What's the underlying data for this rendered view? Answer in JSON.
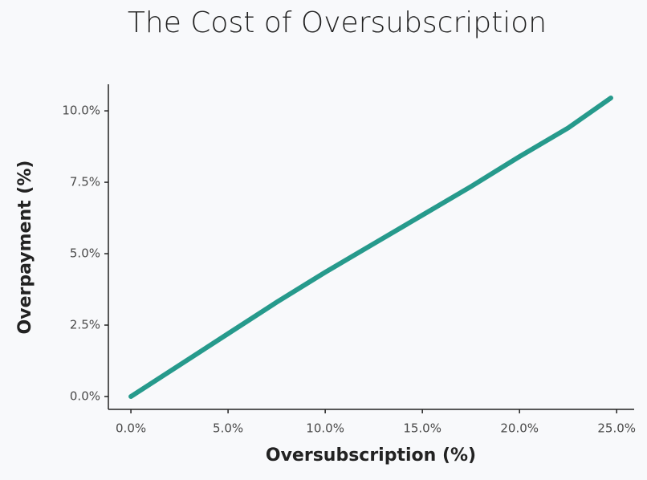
{
  "chart_data": {
    "type": "line",
    "title": "The Cost of Oversubscription",
    "x_label": "Oversubscription (%)",
    "y_label": "Overpayment (%)",
    "x": [
      0,
      2.5,
      5,
      7.5,
      10,
      12.5,
      15,
      17.5,
      20,
      22.5,
      24.7
    ],
    "series": [
      {
        "name": "Overpayment",
        "color": "#269a8c",
        "values": [
          0,
          1.1,
          2.2,
          3.3,
          4.35,
          5.35,
          6.35,
          7.35,
          8.4,
          9.4,
          10.45
        ]
      }
    ],
    "xlim": [
      -1.16,
      25.9
    ],
    "ylim": [
      -0.45,
      10.93
    ],
    "xticks": [
      {
        "value": 0,
        "label": "0.0%"
      },
      {
        "value": 5,
        "label": "5.0%"
      },
      {
        "value": 10,
        "label": "10.0%"
      },
      {
        "value": 15,
        "label": "15.0%"
      },
      {
        "value": 20,
        "label": "20.0%"
      },
      {
        "value": 25,
        "label": "25.0%"
      }
    ],
    "yticks": [
      {
        "value": 0,
        "label": "0.0%"
      },
      {
        "value": 2.5,
        "label": "2.5%"
      },
      {
        "value": 5,
        "label": "5.0%"
      },
      {
        "value": 7.5,
        "label": "7.5%"
      },
      {
        "value": 10,
        "label": "10.0%"
      }
    ]
  }
}
